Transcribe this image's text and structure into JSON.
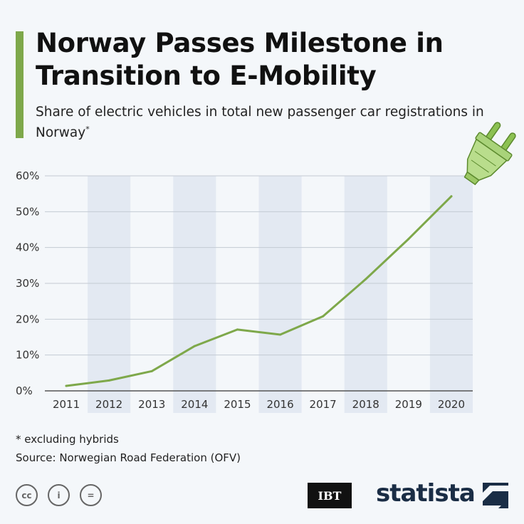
{
  "header": {
    "title": "Norway Passes Milestone in Transition to E-Mobility",
    "subtitle": "Share of electric vehicles in total new passenger car registrations in Norway",
    "subtitle_mark": "*",
    "accent_color": "#7ea84a"
  },
  "chart_data": {
    "type": "line",
    "title": "",
    "xlabel": "",
    "ylabel": "",
    "categories": [
      "2011",
      "2012",
      "2013",
      "2014",
      "2015",
      "2016",
      "2017",
      "2018",
      "2019",
      "2020"
    ],
    "series": [
      {
        "values": [
          1.4,
          2.9,
          5.5,
          12.5,
          17.1,
          15.7,
          20.8,
          31.2,
          42.4,
          54.3
        ],
        "color": "#7ea84a"
      }
    ],
    "y_ticks": [
      "0%",
      "10%",
      "20%",
      "30%",
      "40%",
      "50%",
      "60%"
    ],
    "ylim": [
      0,
      60
    ],
    "grid": true,
    "alternating_column_bands": true,
    "band_color": "#e3e9f2",
    "end_icon": "electric-plug-icon"
  },
  "footer": {
    "footnote": "* excluding hybrids",
    "source": "Source: Norwegian Road Federation (OFV)",
    "license_icons": [
      "cc",
      "i",
      "="
    ],
    "ibt_logo": "IBT",
    "statista_logo": "statista"
  }
}
